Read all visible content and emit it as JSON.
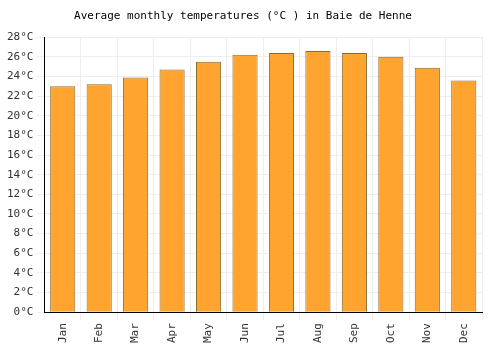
{
  "chart_data": {
    "type": "bar",
    "title": "Average monthly temperatures (°C ) in Baie de Henne",
    "categories": [
      "Jan",
      "Feb",
      "Mar",
      "Apr",
      "May",
      "Jun",
      "Jul",
      "Aug",
      "Sep",
      "Oct",
      "Nov",
      "Dec"
    ],
    "values": [
      23.0,
      23.2,
      23.9,
      24.7,
      25.5,
      26.2,
      26.4,
      26.6,
      26.4,
      26.0,
      24.9,
      23.6
    ],
    "color": "#ffa42e",
    "ylim": [
      0,
      28
    ],
    "yticks": [
      {
        "value": 0,
        "label": "0°C"
      },
      {
        "value": 2,
        "label": "2°C"
      },
      {
        "value": 4,
        "label": "4°C"
      },
      {
        "value": 6,
        "label": "6°C"
      },
      {
        "value": 8,
        "label": "8°C"
      },
      {
        "value": 10,
        "label": "10°C"
      },
      {
        "value": 12,
        "label": "12°C"
      },
      {
        "value": 14,
        "label": "14°C"
      },
      {
        "value": 16,
        "label": "16°C"
      },
      {
        "value": 18,
        "label": "18°C"
      },
      {
        "value": 20,
        "label": "20°C"
      },
      {
        "value": 22,
        "label": "22°C"
      },
      {
        "value": 24,
        "label": "24°C"
      },
      {
        "value": 26,
        "label": "26°C"
      },
      {
        "value": 28,
        "label": "28°C"
      }
    ],
    "grid": true
  }
}
